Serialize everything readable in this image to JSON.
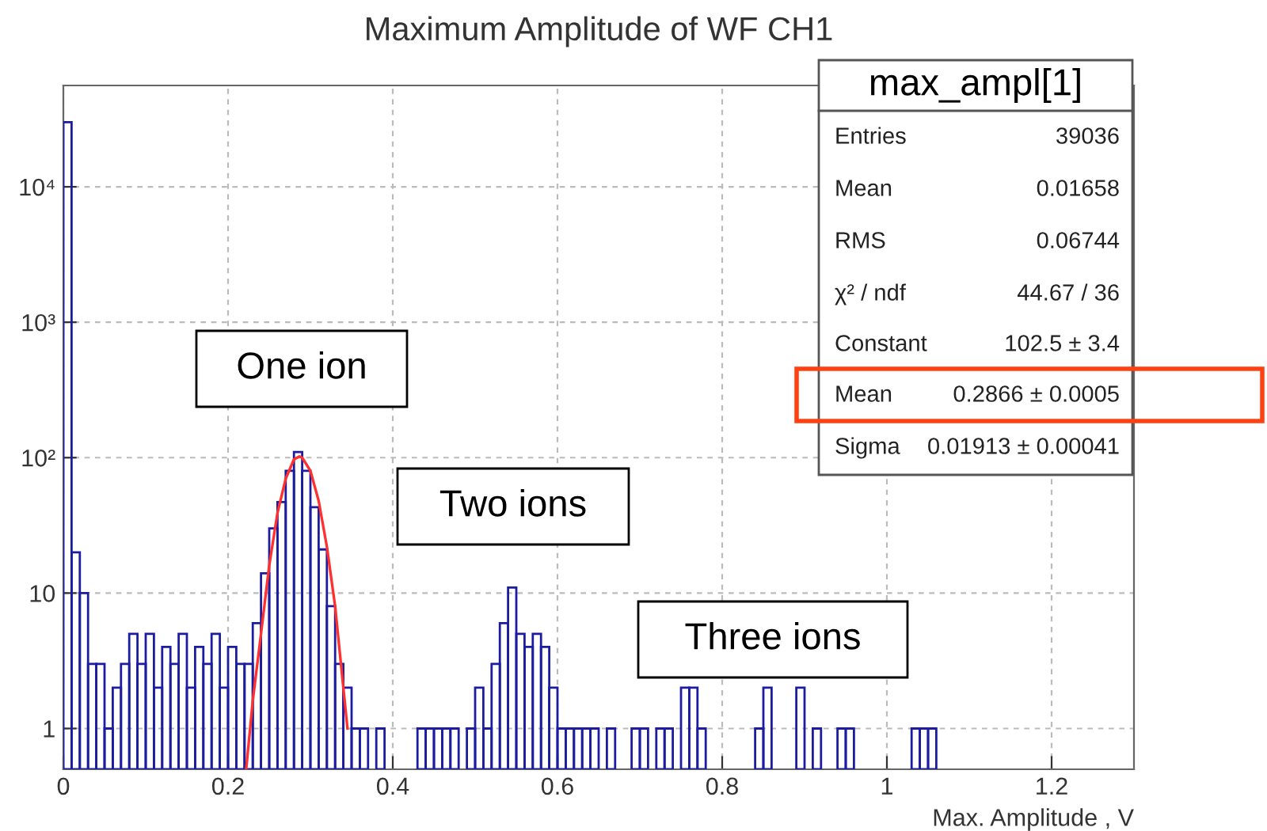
{
  "chart_data": {
    "type": "histogram",
    "title": "Maximum Amplitude of WF CH1",
    "xlabel": "Max. Amplitude , V",
    "bins": [
      0,
      0.01,
      0.02,
      0.03,
      0.04,
      0.05,
      0.06,
      0.07,
      0.08,
      0.09,
      0.1,
      0.11,
      0.12,
      0.13,
      0.14,
      0.15,
      0.16,
      0.17,
      0.18,
      0.19,
      0.2,
      0.21,
      0.22,
      0.23,
      0.24,
      0.25,
      0.26,
      0.27,
      0.28,
      0.29,
      0.3,
      0.31,
      0.32,
      0.33,
      0.34,
      0.35,
      0.36,
      0.37,
      0.38,
      0.39,
      0.4,
      0.41,
      0.42,
      0.43,
      0.44,
      0.45,
      0.46,
      0.47,
      0.48,
      0.49,
      0.5,
      0.51,
      0.52,
      0.53,
      0.54,
      0.55,
      0.56,
      0.57,
      0.58,
      0.59,
      0.6,
      0.61,
      0.62,
      0.63,
      0.64,
      0.65,
      0.66,
      0.67,
      0.68,
      0.69,
      0.7,
      0.71,
      0.72,
      0.73,
      0.74,
      0.75,
      0.76,
      0.77,
      0.78,
      0.79,
      0.8,
      0.81,
      0.82,
      0.83,
      0.84,
      0.85,
      0.86,
      0.87,
      0.88,
      0.89,
      0.9,
      0.91,
      0.92,
      0.93,
      0.94,
      0.95,
      0.96,
      0.97,
      0.98,
      0.99,
      1.0,
      1.01,
      1.02,
      1.03,
      1.04,
      1.05,
      1.06,
      1.07,
      1.08,
      1.09,
      1.1,
      1.11,
      1.12,
      1.13,
      1.14,
      1.15,
      1.16,
      1.17,
      1.18,
      1.19,
      1.2,
      1.21,
      1.22,
      1.23,
      1.24,
      1.25,
      1.26,
      1.27,
      1.28,
      1.29,
      1.3
    ],
    "series": [
      {
        "color": "#1c1ca0",
        "values": [
          30000,
          20,
          10,
          3,
          3,
          1,
          2,
          3,
          5,
          3,
          5,
          2,
          4,
          3,
          5,
          2,
          4,
          3,
          5,
          2,
          4,
          3,
          3,
          6,
          14,
          30,
          47,
          80,
          110,
          80,
          43,
          21,
          8,
          3,
          2,
          1,
          1,
          null,
          1,
          null,
          null,
          null,
          null,
          1,
          1,
          1,
          1,
          1,
          null,
          1,
          2,
          1,
          3,
          6,
          11,
          5,
          4,
          5,
          4,
          2,
          1,
          1,
          1,
          1,
          1,
          null,
          1,
          null,
          null,
          1,
          1,
          null,
          1,
          1,
          null,
          2,
          2,
          1,
          null,
          null,
          null,
          null,
          null,
          null,
          1,
          2,
          null,
          null,
          null,
          2,
          null,
          1,
          null,
          null,
          1,
          1,
          null,
          null,
          null,
          null,
          null,
          null,
          null,
          1,
          1,
          1,
          null,
          null,
          null,
          null,
          null,
          null,
          null,
          null,
          null,
          null,
          null,
          null,
          null,
          null,
          null,
          null,
          null,
          null,
          null,
          null,
          null,
          null,
          null,
          null
        ]
      },
      {
        "type": "line",
        "color": "#ff3030",
        "x": [
          0.222,
          0.23,
          0.24,
          0.25,
          0.26,
          0.27,
          0.28,
          0.2866,
          0.29,
          0.3,
          0.31,
          0.32,
          0.33,
          0.34,
          0.345
        ],
        "values": [
          0.5,
          1.6,
          5,
          16,
          39,
          70,
          97,
          102,
          100,
          80,
          48,
          22,
          8,
          2,
          1
        ]
      }
    ],
    "xlim": [
      0,
      1.3
    ],
    "ylim": [
      0.5,
      56000
    ],
    "log": "y",
    "xticks": [
      0,
      0.2,
      0.4,
      0.6,
      0.8,
      1,
      1.2
    ],
    "yticks": [
      1,
      10,
      {
        "value": 100,
        "label": "10²"
      },
      {
        "value": 1000,
        "label": "10³"
      },
      {
        "value": 10000,
        "label": "10⁴"
      }
    ],
    "grid": true,
    "annotations": [
      "One ion",
      "Two ions",
      "Three ions",
      "max_ampl[1]",
      "Entries",
      "39036",
      "Mean",
      "0.01658",
      "RMS",
      "0.06744",
      "χ² / ndf",
      "44.67 / 36",
      "Constant",
      "102.5 ± 3.4",
      "Mean",
      "0.2866 ± 0.0005",
      "Sigma",
      "0.01913 ± 0.00041"
    ]
  }
}
